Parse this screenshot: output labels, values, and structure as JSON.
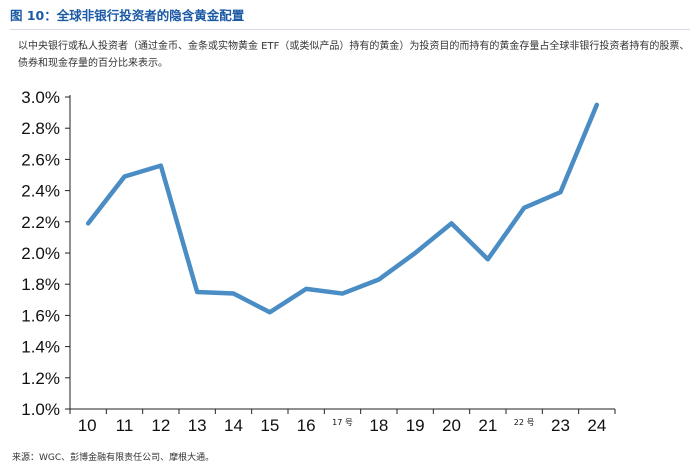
{
  "header": {
    "title": "图 10：全球非银行投资者的隐含黄金配置",
    "description": "以中央银行或私人投资者（通过金币、金条或实物黄金 ETF（或类似产品）持有的黄金）为投资目的而持有的黄金存量占全球非银行投资者持有的股票、债券和现金存量的百分比来表示。"
  },
  "footer": {
    "source": "来源：WGC、彭博金融有限责任公司、摩根大通。"
  },
  "chart_data": {
    "type": "line",
    "title": "",
    "xlabel": "",
    "ylabel": "",
    "x": [
      11,
      12,
      13,
      14,
      15,
      16,
      17,
      18,
      19,
      20,
      21,
      22,
      23,
      24,
      25
    ],
    "x_tick_labels": [
      "10",
      "11",
      "12",
      "13",
      "14",
      "15",
      "16",
      "17 号",
      "18",
      "19",
      "20",
      "21",
      "22 号",
      "23",
      "24"
    ],
    "xlim": [
      10,
      25
    ],
    "series": [
      {
        "name": "",
        "values": [
          2.19,
          2.49,
          2.56,
          1.75,
          1.74,
          1.62,
          1.77,
          1.74,
          1.83,
          2.0,
          2.19,
          1.96,
          2.29,
          2.39,
          2.95
        ]
      }
    ],
    "ylim": [
      1.0,
      3.0
    ],
    "y_ticks": [
      1.0,
      1.2,
      1.4,
      1.6,
      1.8,
      2.0,
      2.2,
      2.4,
      2.6,
      2.8,
      3.0
    ],
    "y_tick_labels": [
      "1.0%",
      "1.2%",
      "1.4%",
      "1.6%",
      "1.8%",
      "2.0%",
      "2.2%",
      "2.4%",
      "2.6%",
      "2.8%",
      "3.0%"
    ],
    "grid": false,
    "legend": "none",
    "line_color": "#4a8cc4"
  }
}
